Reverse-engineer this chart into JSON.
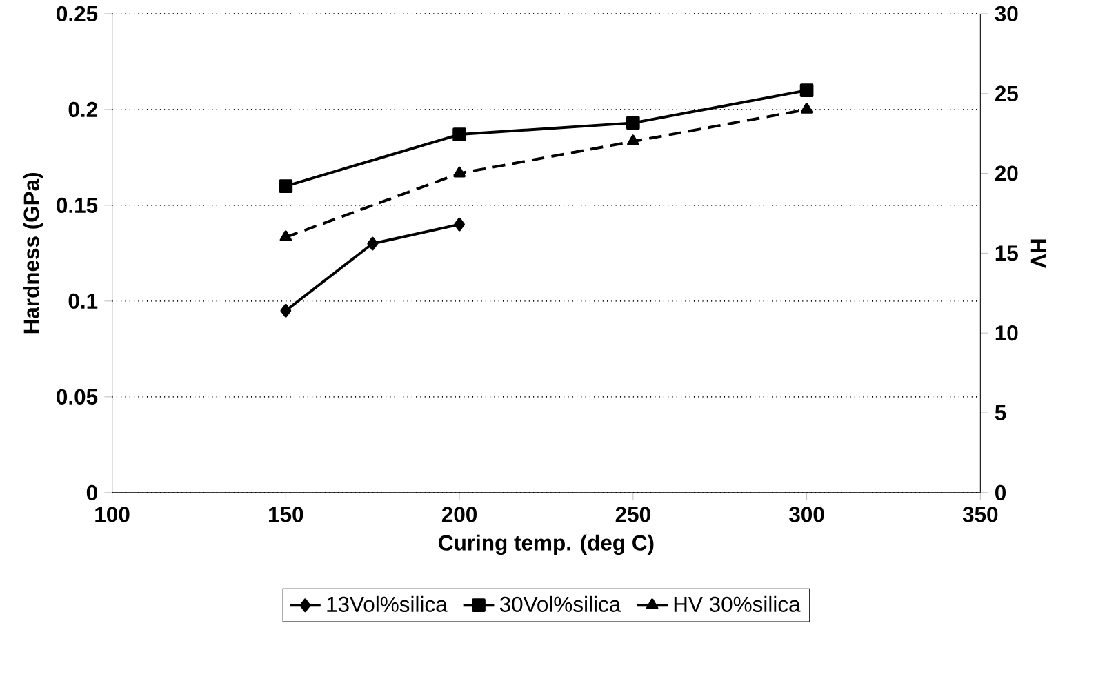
{
  "chart_data": {
    "type": "line",
    "xlabel": "Curing temp. (deg C)",
    "ylabel": "Hardness (GPa)",
    "y2label": "HV",
    "xlim": [
      100,
      350
    ],
    "xticks": [
      100,
      150,
      200,
      250,
      300,
      350
    ],
    "ylim": [
      0,
      0.25
    ],
    "yticks": [
      0,
      0.05,
      0.1,
      0.15,
      0.2,
      0.25
    ],
    "y2lim": [
      0,
      30
    ],
    "y2ticks": [
      0,
      5,
      10,
      15,
      20,
      25,
      30
    ],
    "grid": "y",
    "legend": "bottom",
    "series": [
      {
        "name": "13Vol%silica",
        "color": "#000000",
        "marker": "diamond",
        "line_style": "solid",
        "x": [
          150,
          175,
          200
        ],
        "values": [
          0.095,
          0.13,
          0.14
        ]
      },
      {
        "name": "30Vol%silica",
        "color": "#000000",
        "marker": "square",
        "line_style": "solid",
        "x": [
          150,
          200,
          250,
          300
        ],
        "values": [
          0.16,
          0.187,
          0.193,
          0.21
        ]
      },
      {
        "name": "HV 30%silica",
        "color": "#000000",
        "marker": "triangle",
        "line_style": "dashed",
        "axis": "y2",
        "x": [
          150,
          200,
          250,
          300
        ],
        "values": [
          16,
          20,
          22,
          24
        ]
      }
    ]
  }
}
